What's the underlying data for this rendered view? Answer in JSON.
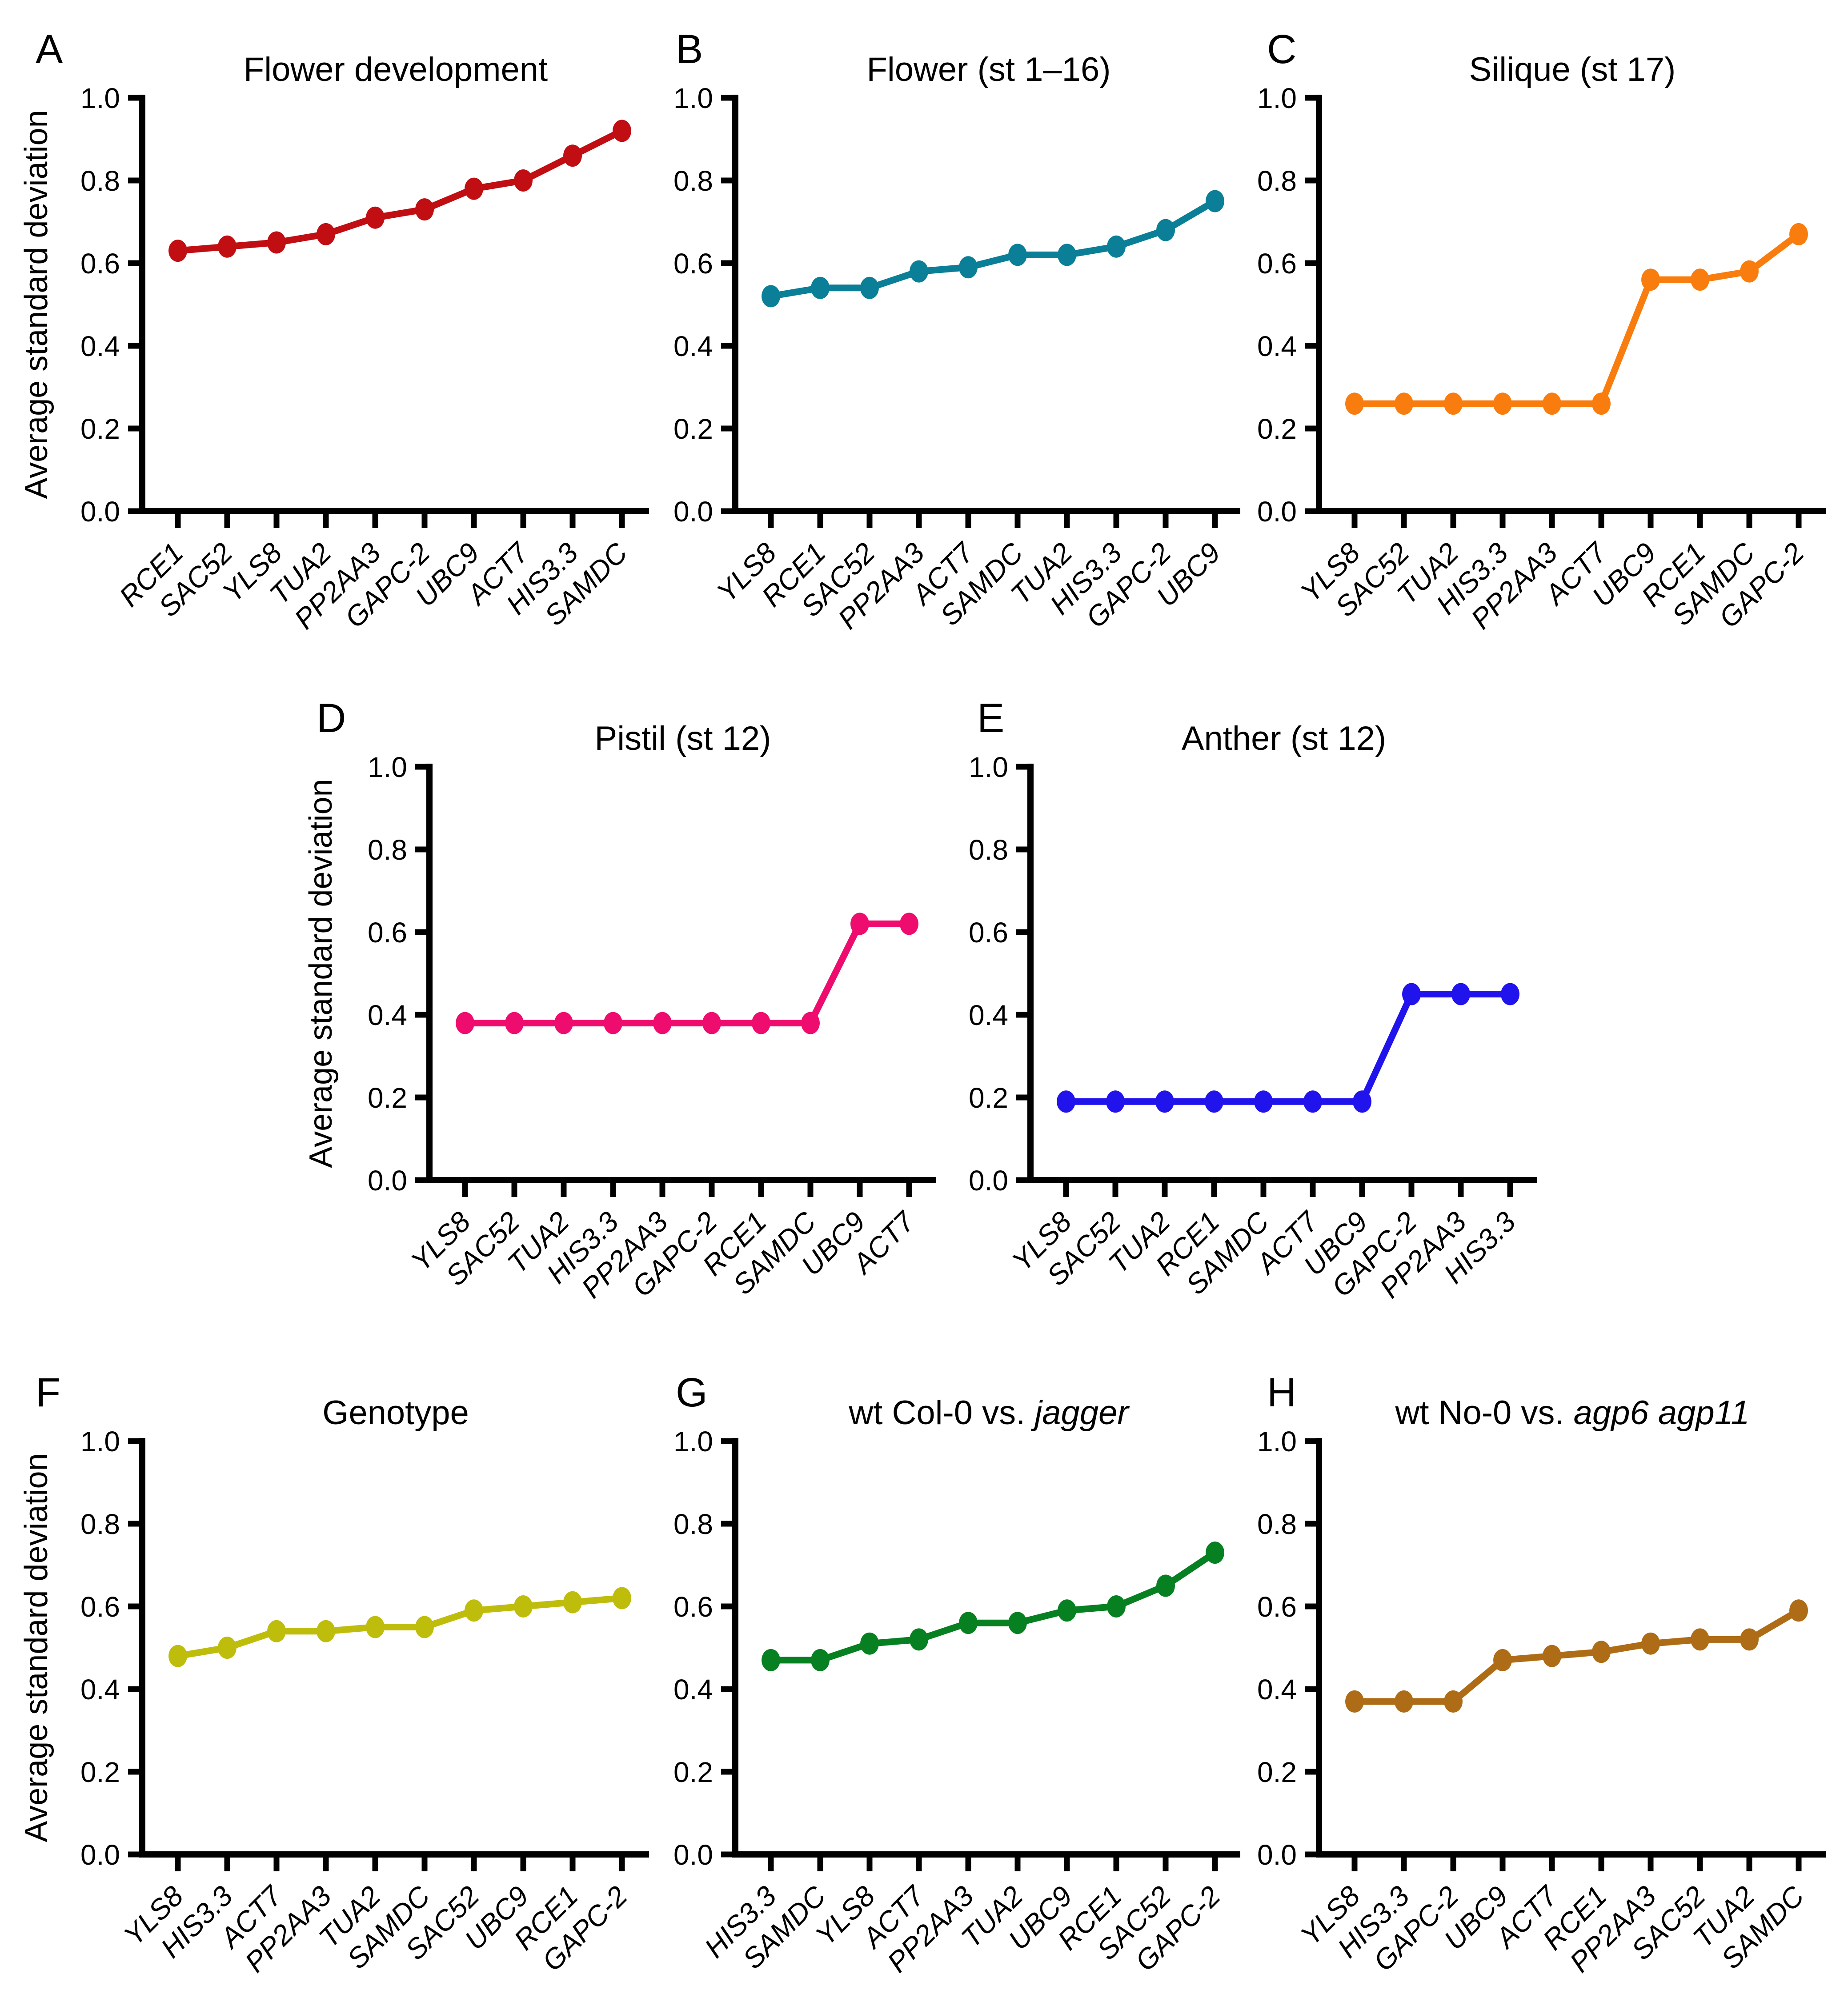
{
  "figure": {
    "ylabel": "Average standard deviation",
    "ylim": [
      0.0,
      1.0
    ],
    "ytick_step": 0.2
  },
  "chart_data": [
    {
      "panel_label": "A",
      "type": "line",
      "title": "Flower development",
      "title_parts": [
        {
          "text": "Flower development",
          "italic": false
        }
      ],
      "color": "#c00e13",
      "show_ylabel": true,
      "ylabel": "Average standard deviation",
      "ylim": [
        0.0,
        1.0
      ],
      "yticks": [
        0.0,
        0.2,
        0.4,
        0.6,
        0.8,
        1.0
      ],
      "categories": [
        "RCE1",
        "SAC52",
        "YLS8",
        "TUA2",
        "PP2AA3",
        "GAPC-2",
        "UBC9",
        "ACT7",
        "HIS3.3",
        "SAMDC"
      ],
      "values": [
        0.63,
        0.64,
        0.65,
        0.67,
        0.71,
        0.73,
        0.78,
        0.8,
        0.86,
        0.92
      ]
    },
    {
      "panel_label": "B",
      "type": "line",
      "title": "Flower (st 1–16)",
      "title_parts": [
        {
          "text": "Flower (st 1–16)",
          "italic": false
        }
      ],
      "color": "#0a7f97",
      "show_ylabel": false,
      "ylabel": "Average standard deviation",
      "ylim": [
        0.0,
        1.0
      ],
      "yticks": [
        0.0,
        0.2,
        0.4,
        0.6,
        0.8,
        1.0
      ],
      "categories": [
        "YLS8",
        "RCE1",
        "SAC52",
        "PP2AA3",
        "ACT7",
        "SAMDC",
        "TUA2",
        "HIS3.3",
        "GAPC-2",
        "UBC9"
      ],
      "values": [
        0.52,
        0.54,
        0.54,
        0.58,
        0.59,
        0.62,
        0.62,
        0.64,
        0.68,
        0.75
      ]
    },
    {
      "panel_label": "C",
      "type": "line",
      "title": "Silique (st 17)",
      "title_parts": [
        {
          "text": "Silique (st 17)",
          "italic": false
        }
      ],
      "color": "#f87d0e",
      "show_ylabel": false,
      "ylabel": "Average standard deviation",
      "ylim": [
        0.0,
        1.0
      ],
      "yticks": [
        0.0,
        0.2,
        0.4,
        0.6,
        0.8,
        1.0
      ],
      "categories": [
        "YLS8",
        "SAC52",
        "TUA2",
        "HIS3.3",
        "PP2AA3",
        "ACT7",
        "UBC9",
        "RCE1",
        "SAMDC",
        "GAPC-2"
      ],
      "values": [
        0.26,
        0.26,
        0.26,
        0.26,
        0.26,
        0.26,
        0.56,
        0.56,
        0.58,
        0.67
      ]
    },
    {
      "panel_label": "D",
      "type": "line",
      "title": "Pistil (st 12)",
      "title_parts": [
        {
          "text": "Pistil (st 12)",
          "italic": false
        }
      ],
      "color": "#ee0c6e",
      "show_ylabel": true,
      "ylabel": "Average standard deviation",
      "ylim": [
        0.0,
        1.0
      ],
      "yticks": [
        0.0,
        0.2,
        0.4,
        0.6,
        0.8,
        1.0
      ],
      "categories": [
        "YLS8",
        "SAC52",
        "TUA2",
        "HIS3.3",
        "PP2AA3",
        "GAPC-2",
        "RCE1",
        "SAMDC",
        "UBC9",
        "ACT7"
      ],
      "values": [
        0.38,
        0.38,
        0.38,
        0.38,
        0.38,
        0.38,
        0.38,
        0.38,
        0.62,
        0.62
      ]
    },
    {
      "panel_label": "E",
      "type": "line",
      "title": "Anther (st 12)",
      "title_parts": [
        {
          "text": "Anther (st 12)",
          "italic": false
        }
      ],
      "color": "#2013ec",
      "show_ylabel": false,
      "ylabel": "Average standard deviation",
      "ylim": [
        0.0,
        1.0
      ],
      "yticks": [
        0.0,
        0.2,
        0.4,
        0.6,
        0.8,
        1.0
      ],
      "categories": [
        "YLS8",
        "SAC52",
        "TUA2",
        "RCE1",
        "SAMDC",
        "ACT7",
        "UBC9",
        "GAPC-2",
        "PP2AA3",
        "HIS3.3"
      ],
      "values": [
        0.19,
        0.19,
        0.19,
        0.19,
        0.19,
        0.19,
        0.19,
        0.45,
        0.45,
        0.45
      ]
    },
    {
      "panel_label": "F",
      "type": "line",
      "title": "Genotype",
      "title_parts": [
        {
          "text": "Genotype",
          "italic": false
        }
      ],
      "color": "#bfbd0c",
      "show_ylabel": true,
      "ylabel": "Average standard deviation",
      "ylim": [
        0.0,
        1.0
      ],
      "yticks": [
        0.0,
        0.2,
        0.4,
        0.6,
        0.8,
        1.0
      ],
      "categories": [
        "YLS8",
        "HIS3.3",
        "ACT7",
        "PP2AA3",
        "TUA2",
        "SAMDC",
        "SAC52",
        "UBC9",
        "RCE1",
        "GAPC-2"
      ],
      "values": [
        0.48,
        0.5,
        0.54,
        0.54,
        0.55,
        0.55,
        0.59,
        0.6,
        0.61,
        0.62
      ]
    },
    {
      "panel_label": "G",
      "type": "line",
      "title": "wt Col-0 vs. jagger",
      "title_parts": [
        {
          "text": "wt Col-0 vs. ",
          "italic": false
        },
        {
          "text": "jagger",
          "italic": true
        }
      ],
      "color": "#078021",
      "show_ylabel": false,
      "ylabel": "Average standard deviation",
      "ylim": [
        0.0,
        1.0
      ],
      "yticks": [
        0.0,
        0.2,
        0.4,
        0.6,
        0.8,
        1.0
      ],
      "categories": [
        "HIS3.3",
        "SAMDC",
        "YLS8",
        "ACT7",
        "PP2AA3",
        "TUA2",
        "UBC9",
        "RCE1",
        "SAC52",
        "GAPC-2"
      ],
      "values": [
        0.47,
        0.47,
        0.51,
        0.52,
        0.56,
        0.56,
        0.59,
        0.6,
        0.65,
        0.73
      ]
    },
    {
      "panel_label": "H",
      "type": "line",
      "title": "wt No-0 vs. agp6 agp11",
      "title_parts": [
        {
          "text": "wt No-0 vs. ",
          "italic": false
        },
        {
          "text": "agp6 agp11",
          "italic": true
        }
      ],
      "color": "#ad6c15",
      "show_ylabel": false,
      "ylabel": "Average standard deviation",
      "ylim": [
        0.0,
        1.0
      ],
      "yticks": [
        0.0,
        0.2,
        0.4,
        0.6,
        0.8,
        1.0
      ],
      "categories": [
        "YLS8",
        "HIS3.3",
        "GAPC-2",
        "UBC9",
        "ACT7",
        "RCE1",
        "PP2AA3",
        "SAC52",
        "TUA2",
        "SAMDC"
      ],
      "values": [
        0.37,
        0.37,
        0.37,
        0.47,
        0.48,
        0.49,
        0.51,
        0.52,
        0.52,
        0.59
      ]
    }
  ]
}
